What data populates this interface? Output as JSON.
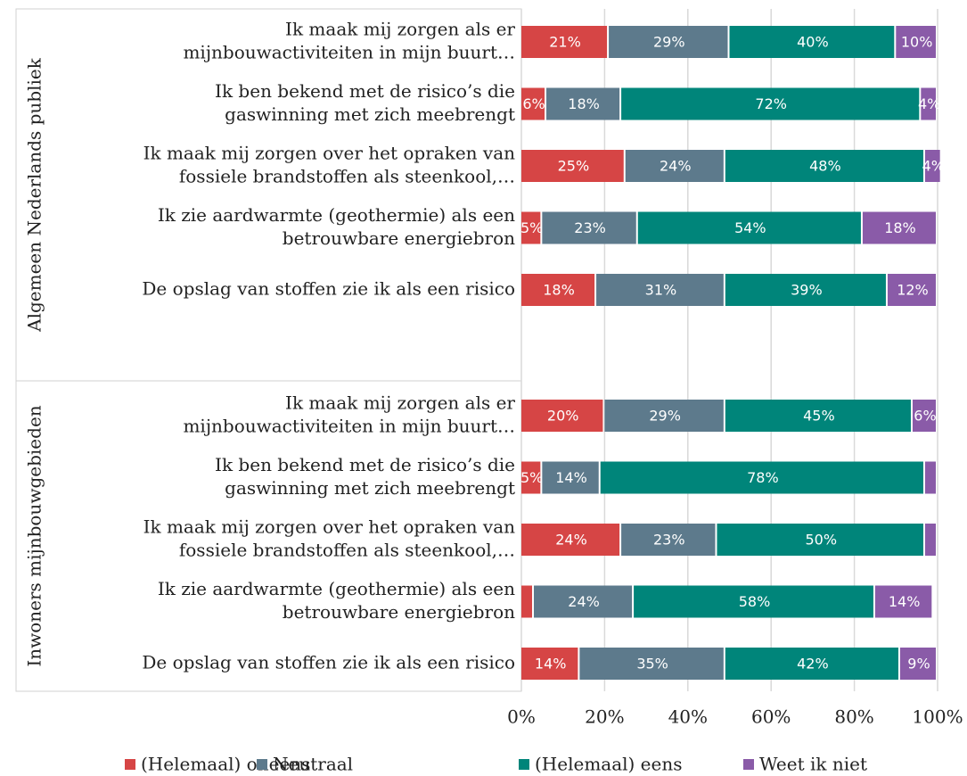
{
  "chart_data": {
    "type": "stacked-barh",
    "groups": [
      "Algemeen Nederlands publiek",
      "Inwoners mijnbouwgebieden"
    ],
    "categories": [
      [
        [
          "Ik maak mij zorgen als er",
          "mijnbouwactiviteiten in mijn buurt…"
        ],
        [
          "Ik ben bekend met de risico’s die",
          "gaswinning met zich meebrengt"
        ],
        [
          "Ik maak mij zorgen over het opraken van",
          "fossiele brandstoffen als steenkool,…"
        ],
        [
          "Ik zie aardwarmte (geothermie) als een",
          "betrouwbare energiebron"
        ],
        [
          "De opslag van stoffen zie ik als een risico"
        ]
      ],
      [
        [
          "Ik maak mij zorgen als er",
          "mijnbouwactiviteiten in mijn buurt…"
        ],
        [
          "Ik ben bekend met de risico’s die",
          "gaswinning met zich meebrengt"
        ],
        [
          "Ik maak mij zorgen over het opraken van",
          "fossiele brandstoffen als steenkool,…"
        ],
        [
          "Ik zie aardwarmte (geothermie) als een",
          "betrouwbare energiebron"
        ],
        [
          "De opslag van stoffen zie ik als een risico"
        ]
      ]
    ],
    "series": [
      {
        "name": "(Helemaal) oneens",
        "color": "#d64545",
        "values": [
          [
            21,
            6,
            25,
            5,
            18
          ],
          [
            20,
            5,
            24,
            3,
            14
          ]
        ],
        "value_labels": [
          [
            "21%",
            "6%",
            "25%",
            "5%",
            "18%"
          ],
          [
            "20%",
            "5%",
            "24%",
            null,
            "14%"
          ]
        ]
      },
      {
        "name": "Neutraal",
        "color": "#5d7a8c",
        "values": [
          [
            29,
            18,
            24,
            23,
            31
          ],
          [
            29,
            14,
            23,
            24,
            35
          ]
        ],
        "value_labels": [
          [
            "29%",
            "18%",
            "24%",
            "23%",
            "31%"
          ],
          [
            "29%",
            "14%",
            "23%",
            "24%",
            "35%"
          ]
        ]
      },
      {
        "name": "(Helemaal) eens",
        "color": "#00857a",
        "values": [
          [
            40,
            72,
            48,
            54,
            39
          ],
          [
            45,
            78,
            50,
            58,
            42
          ]
        ],
        "value_labels": [
          [
            "40%",
            "72%",
            "48%",
            "54%",
            "39%"
          ],
          [
            "45%",
            "78%",
            "50%",
            "58%",
            "42%"
          ]
        ]
      },
      {
        "name": "Weet ik niet",
        "color": "#8a5ba8",
        "values": [
          [
            10,
            4,
            4,
            18,
            12
          ],
          [
            6,
            3,
            3,
            14,
            9
          ]
        ],
        "value_labels": [
          [
            "10%",
            "4%",
            "4%",
            "18%",
            "12%"
          ],
          [
            "6%",
            null,
            null,
            "14%",
            "9%"
          ]
        ]
      }
    ],
    "xlim": [
      0,
      100
    ],
    "xticks": [
      {
        "value": 0,
        "label": "0%"
      },
      {
        "value": 20,
        "label": "20%"
      },
      {
        "value": 40,
        "label": "40%"
      },
      {
        "value": 60,
        "label": "60%"
      },
      {
        "value": 80,
        "label": "80%"
      },
      {
        "value": 100,
        "label": "100%"
      }
    ],
    "grid": true,
    "legend": "bottom"
  }
}
